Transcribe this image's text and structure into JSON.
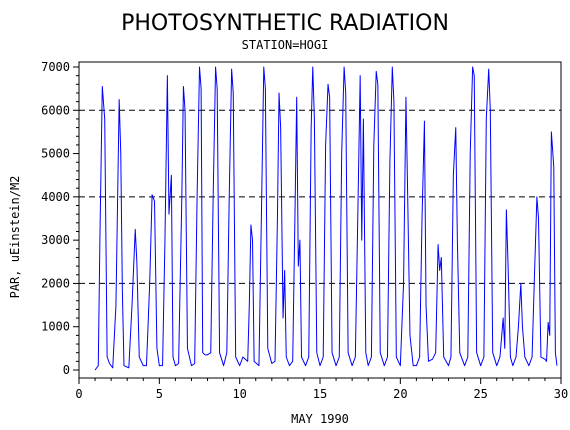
{
  "chart_data": {
    "type": "line",
    "title": "PHOTOSYNTHETIC RADIATION",
    "subtitle": "STATION=HOGI",
    "xlabel": "MAY 1990",
    "ylabel": "PAR, uEinstein/M2",
    "xlim": [
      0,
      30
    ],
    "ylim": [
      0,
      7000
    ],
    "xticks": [
      0,
      5,
      10,
      15,
      20,
      25,
      30
    ],
    "yticks": [
      0,
      1000,
      2000,
      3000,
      4000,
      5000,
      6000,
      7000
    ],
    "reference_lines_y": [
      2000,
      4000,
      6000
    ],
    "grid": false,
    "line_color": "#0000ff",
    "series": [
      {
        "values": [
          [
            1.0,
            0
          ],
          [
            1.2,
            100
          ],
          [
            1.3,
            3000
          ],
          [
            1.45,
            6550
          ],
          [
            1.6,
            5800
          ],
          [
            1.75,
            300
          ],
          [
            1.9,
            150
          ],
          [
            2.1,
            50
          ],
          [
            2.3,
            1500
          ],
          [
            2.5,
            6250
          ],
          [
            2.6,
            5000
          ],
          [
            2.7,
            1800
          ],
          [
            2.8,
            100
          ],
          [
            3.1,
            50
          ],
          [
            3.3,
            1500
          ],
          [
            3.5,
            3250
          ],
          [
            3.6,
            2500
          ],
          [
            3.75,
            300
          ],
          [
            4.0,
            100
          ],
          [
            4.2,
            100
          ],
          [
            4.4,
            2000
          ],
          [
            4.55,
            4050
          ],
          [
            4.7,
            3900
          ],
          [
            4.85,
            500
          ],
          [
            5.0,
            100
          ],
          [
            5.2,
            100
          ],
          [
            5.35,
            3000
          ],
          [
            5.5,
            6800
          ],
          [
            5.6,
            3600
          ],
          [
            5.75,
            4500
          ],
          [
            5.85,
            300
          ],
          [
            6.0,
            100
          ],
          [
            6.2,
            150
          ],
          [
            6.4,
            4000
          ],
          [
            6.5,
            6550
          ],
          [
            6.6,
            6000
          ],
          [
            6.75,
            500
          ],
          [
            7.0,
            100
          ],
          [
            7.2,
            150
          ],
          [
            7.35,
            4000
          ],
          [
            7.5,
            7000
          ],
          [
            7.6,
            6500
          ],
          [
            7.7,
            400
          ],
          [
            7.85,
            350
          ],
          [
            8.0,
            350
          ],
          [
            8.2,
            400
          ],
          [
            8.35,
            4000
          ],
          [
            8.5,
            7000
          ],
          [
            8.6,
            6500
          ],
          [
            8.75,
            400
          ],
          [
            9.0,
            100
          ],
          [
            9.2,
            400
          ],
          [
            9.35,
            4000
          ],
          [
            9.5,
            6950
          ],
          [
            9.6,
            6400
          ],
          [
            9.75,
            300
          ],
          [
            10.0,
            100
          ],
          [
            10.2,
            300
          ],
          [
            10.5,
            200
          ],
          [
            10.6,
            1500
          ],
          [
            10.7,
            3350
          ],
          [
            10.8,
            3000
          ],
          [
            10.9,
            200
          ],
          [
            11.2,
            100
          ],
          [
            11.35,
            3500
          ],
          [
            11.5,
            7000
          ],
          [
            11.6,
            6500
          ],
          [
            11.75,
            500
          ],
          [
            12.0,
            150
          ],
          [
            12.2,
            200
          ],
          [
            12.35,
            3500
          ],
          [
            12.45,
            6400
          ],
          [
            12.55,
            5600
          ],
          [
            12.7,
            1200
          ],
          [
            12.8,
            2300
          ],
          [
            12.9,
            300
          ],
          [
            13.1,
            100
          ],
          [
            13.3,
            200
          ],
          [
            13.45,
            3800
          ],
          [
            13.55,
            6300
          ],
          [
            13.65,
            2400
          ],
          [
            13.75,
            3000
          ],
          [
            13.85,
            300
          ],
          [
            14.1,
            100
          ],
          [
            14.3,
            300
          ],
          [
            14.45,
            5600
          ],
          [
            14.55,
            7000
          ],
          [
            14.65,
            5800
          ],
          [
            14.8,
            400
          ],
          [
            15.0,
            100
          ],
          [
            15.2,
            300
          ],
          [
            15.35,
            5200
          ],
          [
            15.5,
            6600
          ],
          [
            15.6,
            6300
          ],
          [
            15.75,
            400
          ],
          [
            16.0,
            100
          ],
          [
            16.2,
            300
          ],
          [
            16.35,
            5000
          ],
          [
            16.5,
            7000
          ],
          [
            16.6,
            6400
          ],
          [
            16.75,
            400
          ],
          [
            17.0,
            100
          ],
          [
            17.2,
            300
          ],
          [
            17.35,
            3500
          ],
          [
            17.5,
            6800
          ],
          [
            17.6,
            3000
          ],
          [
            17.7,
            5800
          ],
          [
            17.85,
            400
          ],
          [
            18.0,
            100
          ],
          [
            18.2,
            300
          ],
          [
            18.35,
            5200
          ],
          [
            18.5,
            6900
          ],
          [
            18.6,
            6600
          ],
          [
            18.75,
            400
          ],
          [
            19.0,
            100
          ],
          [
            19.2,
            300
          ],
          [
            19.35,
            4800
          ],
          [
            19.5,
            7000
          ],
          [
            19.6,
            6200
          ],
          [
            19.75,
            300
          ],
          [
            20.0,
            100
          ],
          [
            20.2,
            2000
          ],
          [
            20.35,
            6300
          ],
          [
            20.45,
            4200
          ],
          [
            20.6,
            800
          ],
          [
            20.8,
            100
          ],
          [
            21.0,
            100
          ],
          [
            21.2,
            300
          ],
          [
            21.35,
            3500
          ],
          [
            21.5,
            5750
          ],
          [
            21.6,
            1500
          ],
          [
            21.75,
            200
          ],
          [
            22.0,
            250
          ],
          [
            22.2,
            400
          ],
          [
            22.35,
            2900
          ],
          [
            22.45,
            2300
          ],
          [
            22.55,
            2600
          ],
          [
            22.7,
            300
          ],
          [
            23.0,
            100
          ],
          [
            23.15,
            300
          ],
          [
            23.3,
            4500
          ],
          [
            23.45,
            5600
          ],
          [
            23.55,
            3000
          ],
          [
            23.7,
            400
          ],
          [
            24.0,
            100
          ],
          [
            24.2,
            300
          ],
          [
            24.35,
            5000
          ],
          [
            24.5,
            7000
          ],
          [
            24.6,
            6800
          ],
          [
            24.75,
            400
          ],
          [
            25.0,
            100
          ],
          [
            25.2,
            300
          ],
          [
            25.35,
            5800
          ],
          [
            25.5,
            6950
          ],
          [
            25.6,
            6000
          ],
          [
            25.75,
            400
          ],
          [
            26.0,
            100
          ],
          [
            26.2,
            300
          ],
          [
            26.4,
            1200
          ],
          [
            26.5,
            500
          ],
          [
            26.6,
            3700
          ],
          [
            26.7,
            2500
          ],
          [
            26.85,
            300
          ],
          [
            27.0,
            100
          ],
          [
            27.2,
            300
          ],
          [
            27.35,
            1000
          ],
          [
            27.5,
            2000
          ],
          [
            27.6,
            1000
          ],
          [
            27.75,
            300
          ],
          [
            28.0,
            100
          ],
          [
            28.2,
            300
          ],
          [
            28.35,
            2200
          ],
          [
            28.5,
            4000
          ],
          [
            28.6,
            3500
          ],
          [
            28.75,
            300
          ],
          [
            29.0,
            250
          ],
          [
            29.1,
            200
          ],
          [
            29.2,
            1100
          ],
          [
            29.3,
            800
          ],
          [
            29.4,
            5500
          ],
          [
            29.55,
            4700
          ],
          [
            29.65,
            400
          ],
          [
            29.75,
            100
          ]
        ]
      }
    ]
  }
}
